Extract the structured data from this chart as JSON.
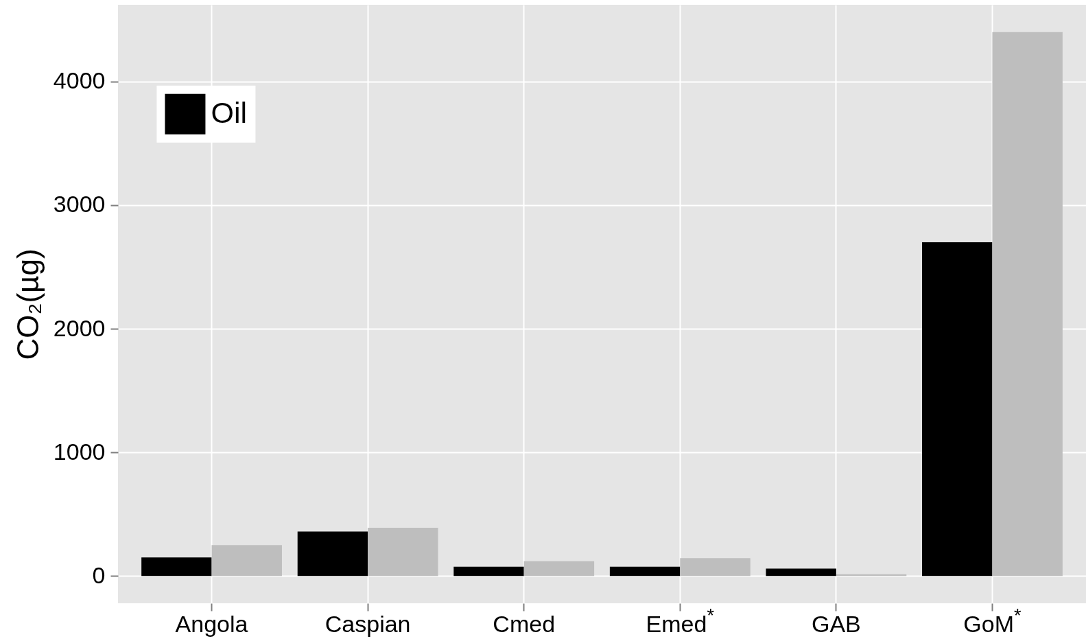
{
  "chart_data": {
    "type": "bar",
    "categories": [
      "Angola",
      "Caspian",
      "Cmed",
      "Emed$^{*}$",
      "GAB",
      "GoM$^{*}$"
    ],
    "ylabel": "CO₂(µg)",
    "series": [
      {
        "name": "Oil",
        "color": "#000000",
        "values": [
          150,
          360,
          75,
          75,
          60,
          2700
        ]
      },
      {
        "color": "#bebebe",
        "values": [
          250,
          390,
          120,
          145,
          15,
          4400
        ]
      }
    ],
    "ylim": [
      -220,
      4620
    ],
    "yticks": [
      0,
      1000,
      2000,
      3000,
      4000
    ],
    "grid": true,
    "legend": "top left"
  }
}
